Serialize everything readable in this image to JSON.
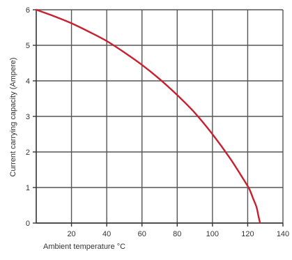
{
  "chart_data": {
    "type": "line",
    "title": "",
    "xlabel": "Ambient temperature °C",
    "ylabel": "Current carrying capacity (Ampere)",
    "xlim": [
      0,
      140
    ],
    "ylim": [
      0,
      6
    ],
    "x_ticks": [
      20,
      40,
      60,
      80,
      100,
      120,
      140
    ],
    "y_ticks": [
      0,
      1,
      2,
      3,
      4,
      5,
      6
    ],
    "grid": true,
    "series": [
      {
        "color": "#c8202f",
        "x": [
          0,
          10,
          20,
          30,
          40,
          50,
          60,
          70,
          80,
          90,
          100,
          110,
          118,
          121,
          123,
          125,
          126,
          127
        ],
        "y": [
          6.0,
          5.82,
          5.62,
          5.38,
          5.12,
          4.8,
          4.45,
          4.05,
          3.6,
          3.1,
          2.5,
          1.82,
          1.2,
          0.95,
          0.7,
          0.45,
          0.22,
          0.0
        ]
      }
    ]
  }
}
